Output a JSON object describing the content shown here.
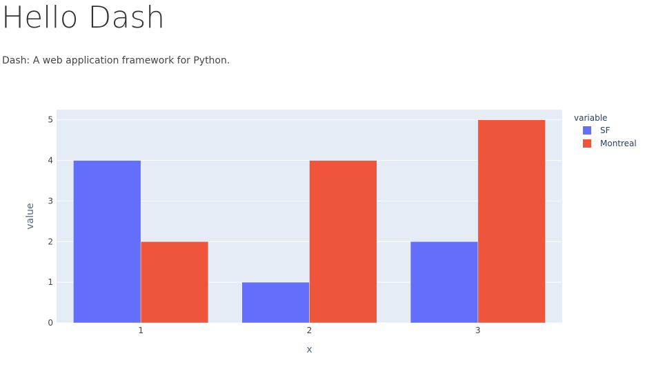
{
  "page": {
    "title": "Hello Dash",
    "subtitle": "Dash: A web application framework for Python."
  },
  "chart_data": {
    "type": "bar",
    "barmode": "group",
    "categories": [
      1,
      2,
      3
    ],
    "series": [
      {
        "name": "SF",
        "color": "#636efa",
        "values": [
          4,
          1,
          2
        ]
      },
      {
        "name": "Montreal",
        "color": "#ef553b",
        "values": [
          2,
          4,
          5
        ]
      }
    ],
    "xlabel": "x",
    "ylabel": "value",
    "ylim": [
      0,
      5.25
    ],
    "yticks": [
      0,
      1,
      2,
      3,
      4,
      5
    ],
    "grid": true,
    "plot_background": "#e5ecf6",
    "legend": {
      "title": "variable",
      "position": "right"
    }
  }
}
